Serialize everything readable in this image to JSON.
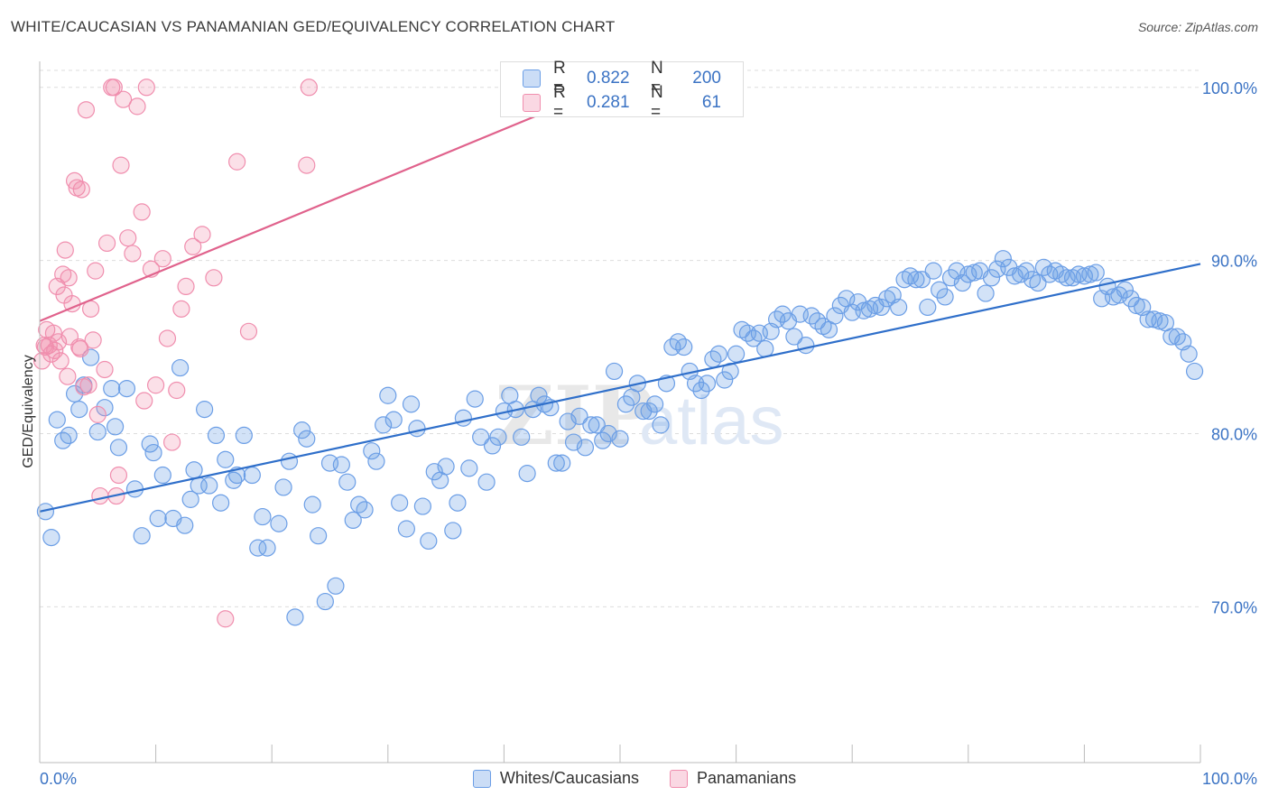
{
  "title": "WHITE/CAUCASIAN VS PANAMANIAN GED/EQUIVALENCY CORRELATION CHART",
  "source": "Source: ZipAtlas.com",
  "watermark": "ZIPatlas",
  "stats": [
    {
      "r_label": "R =",
      "r_value": "0.822",
      "n_label": "N =",
      "n_value": "200",
      "color": "#6b9ee6"
    },
    {
      "r_label": "R =",
      "r_value": "0.281",
      "n_label": "N =",
      "n_value": "61",
      "color": "#f08eae"
    }
  ],
  "legend": [
    {
      "label": "Whites/Caucasians",
      "color": "#6b9ee6"
    },
    {
      "label": "Panamanians",
      "color": "#f08eae"
    }
  ],
  "chart_data": {
    "type": "scatter",
    "title": "WHITE/CAUCASIAN VS PANAMANIAN GED/EQUIVALENCY CORRELATION CHART",
    "xlabel": "",
    "ylabel": "GED/Equivalency",
    "xlim": [
      0,
      100
    ],
    "ylim": [
      61,
      101.5
    ],
    "x_tick_labels": [
      "0.0%",
      "100.0%"
    ],
    "y_ticks": [
      70,
      80,
      90,
      100
    ],
    "y_tick_labels": [
      "70.0%",
      "80.0%",
      "90.0%",
      "100.0%"
    ],
    "grid": true,
    "legend_position": "bottom",
    "series": [
      {
        "name": "Whites/Caucasians",
        "color": "#6b9ee6",
        "R": 0.822,
        "N": 200,
        "trend": {
          "x": [
            0,
            100
          ],
          "y": [
            75.5,
            89.8
          ]
        },
        "points": [
          [
            0.5,
            75.5
          ],
          [
            1,
            74
          ],
          [
            1.5,
            80.8
          ],
          [
            2,
            79.6
          ],
          [
            2.5,
            79.9
          ],
          [
            3,
            82.3
          ],
          [
            3.4,
            81.4
          ],
          [
            3.8,
            82.8
          ],
          [
            4.4,
            84.4
          ],
          [
            5,
            80.1
          ],
          [
            5.6,
            81.5
          ],
          [
            6.2,
            82.6
          ],
          [
            6.5,
            80.4
          ],
          [
            6.8,
            79.2
          ],
          [
            7.5,
            82.6
          ],
          [
            8.2,
            76.8
          ],
          [
            8.8,
            74.1
          ],
          [
            9.5,
            79.4
          ],
          [
            9.8,
            78.9
          ],
          [
            10.2,
            75.1
          ],
          [
            10.6,
            77.6
          ],
          [
            11.5,
            75.1
          ],
          [
            12.1,
            83.8
          ],
          [
            12.5,
            74.7
          ],
          [
            13,
            76.2
          ],
          [
            13.3,
            77.9
          ],
          [
            13.7,
            77
          ],
          [
            14.2,
            81.4
          ],
          [
            14.6,
            77
          ],
          [
            15.2,
            79.9
          ],
          [
            15.6,
            76
          ],
          [
            16,
            78.5
          ],
          [
            16.7,
            77.3
          ],
          [
            17,
            77.6
          ],
          [
            17.6,
            79.9
          ],
          [
            18.3,
            77.6
          ],
          [
            18.8,
            73.4
          ],
          [
            19.2,
            75.2
          ],
          [
            19.6,
            73.4
          ],
          [
            20.6,
            74.8
          ],
          [
            21,
            76.9
          ],
          [
            21.5,
            78.4
          ],
          [
            22,
            69.4
          ],
          [
            22.6,
            80.2
          ],
          [
            23,
            79.7
          ],
          [
            23.5,
            75.9
          ],
          [
            24,
            74.1
          ],
          [
            24.6,
            70.3
          ],
          [
            25,
            78.3
          ],
          [
            25.5,
            71.2
          ],
          [
            26,
            78.2
          ],
          [
            26.5,
            77.2
          ],
          [
            27,
            75
          ],
          [
            27.5,
            75.9
          ],
          [
            28,
            75.6
          ],
          [
            28.6,
            79
          ],
          [
            29,
            78.4
          ],
          [
            29.6,
            80.5
          ],
          [
            30,
            82.2
          ],
          [
            30.5,
            80.8
          ],
          [
            31,
            76
          ],
          [
            31.6,
            74.5
          ],
          [
            32,
            81.7
          ],
          [
            32.5,
            80.3
          ],
          [
            33,
            75.8
          ],
          [
            33.5,
            73.8
          ],
          [
            34,
            77.8
          ],
          [
            34.5,
            77.3
          ],
          [
            35,
            78.1
          ],
          [
            35.6,
            74.4
          ],
          [
            36,
            76
          ],
          [
            36.5,
            80.9
          ],
          [
            37,
            78
          ],
          [
            37.5,
            82
          ],
          [
            38,
            79.8
          ],
          [
            38.5,
            77.2
          ],
          [
            39,
            79.3
          ],
          [
            39.5,
            79.8
          ],
          [
            40,
            81.3
          ],
          [
            40.5,
            82.2
          ],
          [
            41,
            81.4
          ],
          [
            41.5,
            79.8
          ],
          [
            42,
            77.7
          ],
          [
            42.5,
            81.4
          ],
          [
            43,
            82.2
          ],
          [
            43.5,
            81.7
          ],
          [
            44,
            81.5
          ],
          [
            44.5,
            78.3
          ],
          [
            45,
            78.3
          ],
          [
            45.5,
            80.7
          ],
          [
            46,
            79.5
          ],
          [
            46.5,
            81
          ],
          [
            47,
            79.2
          ],
          [
            47.5,
            80.5
          ],
          [
            48,
            80.5
          ],
          [
            48.5,
            79.6
          ],
          [
            49,
            80
          ],
          [
            49.5,
            83.6
          ],
          [
            50,
            79.7
          ],
          [
            50.5,
            81.7
          ],
          [
            51,
            82.1
          ],
          [
            51.5,
            82.9
          ],
          [
            52,
            81.3
          ],
          [
            52.5,
            81.3
          ],
          [
            53,
            81.7
          ],
          [
            53.5,
            80.5
          ],
          [
            54,
            82.9
          ],
          [
            54.5,
            85
          ],
          [
            55,
            85.3
          ],
          [
            55.5,
            85
          ],
          [
            56,
            83.6
          ],
          [
            56.5,
            82.9
          ],
          [
            57,
            82.5
          ],
          [
            57.5,
            82.9
          ],
          [
            58,
            84.3
          ],
          [
            58.5,
            84.6
          ],
          [
            59,
            83.1
          ],
          [
            59.5,
            83.6
          ],
          [
            60,
            84.6
          ],
          [
            60.5,
            86
          ],
          [
            61,
            85.8
          ],
          [
            61.5,
            85.5
          ],
          [
            62,
            85.8
          ],
          [
            62.5,
            84.9
          ],
          [
            63,
            85.9
          ],
          [
            63.5,
            86.6
          ],
          [
            64,
            86.9
          ],
          [
            64.5,
            86.5
          ],
          [
            65,
            85.6
          ],
          [
            65.5,
            86.9
          ],
          [
            66,
            85.1
          ],
          [
            66.5,
            86.8
          ],
          [
            67,
            86.5
          ],
          [
            67.5,
            86.2
          ],
          [
            68,
            86
          ],
          [
            68.5,
            86.8
          ],
          [
            69,
            87.4
          ],
          [
            69.5,
            87.8
          ],
          [
            70,
            87
          ],
          [
            70.5,
            87.6
          ],
          [
            71,
            87.1
          ],
          [
            71.5,
            87.2
          ],
          [
            72,
            87.4
          ],
          [
            72.5,
            87.3
          ],
          [
            73,
            87.8
          ],
          [
            73.5,
            88
          ],
          [
            74,
            87.3
          ],
          [
            74.5,
            88.9
          ],
          [
            75,
            89.1
          ],
          [
            75.5,
            88.9
          ],
          [
            76,
            88.9
          ],
          [
            76.5,
            87.3
          ],
          [
            77,
            89.4
          ],
          [
            77.5,
            88.3
          ],
          [
            78,
            87.9
          ],
          [
            78.5,
            89
          ],
          [
            79,
            89.4
          ],
          [
            79.5,
            88.7
          ],
          [
            80,
            89.2
          ],
          [
            80.5,
            89.3
          ],
          [
            81,
            89.4
          ],
          [
            81.5,
            88.1
          ],
          [
            82,
            89
          ],
          [
            82.5,
            89.5
          ],
          [
            83,
            90.1
          ],
          [
            83.5,
            89.6
          ],
          [
            84,
            89.1
          ],
          [
            84.5,
            89.2
          ],
          [
            85,
            89.4
          ],
          [
            85.5,
            88.9
          ],
          [
            86,
            88.7
          ],
          [
            86.5,
            89.6
          ],
          [
            87,
            89.2
          ],
          [
            87.5,
            89.4
          ],
          [
            88,
            89.2
          ],
          [
            88.5,
            89
          ],
          [
            89,
            89
          ],
          [
            89.5,
            89.2
          ],
          [
            90,
            89.1
          ],
          [
            90.5,
            89.2
          ],
          [
            91,
            89.3
          ],
          [
            91.5,
            87.8
          ],
          [
            92,
            88.5
          ],
          [
            92.5,
            87.9
          ],
          [
            93,
            88
          ],
          [
            93.5,
            88.3
          ],
          [
            94,
            87.8
          ],
          [
            94.5,
            87.4
          ],
          [
            95,
            87.3
          ],
          [
            95.5,
            86.6
          ],
          [
            96,
            86.6
          ],
          [
            96.5,
            86.5
          ],
          [
            97,
            86.4
          ],
          [
            97.5,
            85.6
          ],
          [
            98,
            85.6
          ],
          [
            98.5,
            85.3
          ],
          [
            99,
            84.6
          ],
          [
            99.5,
            83.6
          ]
        ]
      },
      {
        "name": "Panamanians",
        "color": "#f08eae",
        "R": 0.281,
        "N": 61,
        "trend": {
          "x": [
            0,
            48
          ],
          "y": [
            86.5,
            99.8
          ]
        },
        "points": [
          [
            0.2,
            84.2
          ],
          [
            0.4,
            85.1
          ],
          [
            0.5,
            85
          ],
          [
            0.6,
            86
          ],
          [
            0.8,
            85.1
          ],
          [
            1,
            84.6
          ],
          [
            1.2,
            85.8
          ],
          [
            1.3,
            84.8
          ],
          [
            1.5,
            88.5
          ],
          [
            1.6,
            85.3
          ],
          [
            1.8,
            84.2
          ],
          [
            2,
            89.2
          ],
          [
            2.1,
            88
          ],
          [
            2.2,
            90.6
          ],
          [
            2.4,
            83.3
          ],
          [
            2.5,
            89
          ],
          [
            2.6,
            85.6
          ],
          [
            2.8,
            87.5
          ],
          [
            3,
            94.6
          ],
          [
            3.2,
            94.2
          ],
          [
            3.4,
            85
          ],
          [
            3.5,
            84.9
          ],
          [
            3.6,
            94.1
          ],
          [
            3.8,
            82.7
          ],
          [
            4,
            98.7
          ],
          [
            4.2,
            82.8
          ],
          [
            4.4,
            87.2
          ],
          [
            4.6,
            85.4
          ],
          [
            4.8,
            89.4
          ],
          [
            5,
            81.1
          ],
          [
            5.2,
            76.4
          ],
          [
            5.6,
            83.7
          ],
          [
            5.8,
            91
          ],
          [
            6.2,
            100
          ],
          [
            6.4,
            100
          ],
          [
            6.6,
            76.4
          ],
          [
            6.8,
            77.6
          ],
          [
            7,
            95.5
          ],
          [
            7.2,
            99.3
          ],
          [
            7.6,
            91.3
          ],
          [
            8,
            90.4
          ],
          [
            8.4,
            98.9
          ],
          [
            8.8,
            92.8
          ],
          [
            9,
            81.9
          ],
          [
            9.2,
            100
          ],
          [
            9.6,
            89.5
          ],
          [
            10,
            82.8
          ],
          [
            10.6,
            90.1
          ],
          [
            11,
            85.5
          ],
          [
            11.4,
            79.5
          ],
          [
            11.8,
            82.5
          ],
          [
            12.2,
            87.2
          ],
          [
            12.6,
            88.5
          ],
          [
            13.2,
            90.8
          ],
          [
            14,
            91.5
          ],
          [
            15,
            89
          ],
          [
            16,
            69.3
          ],
          [
            17,
            95.7
          ],
          [
            18,
            85.9
          ],
          [
            23,
            95.5
          ],
          [
            23.2,
            100
          ]
        ]
      }
    ]
  }
}
